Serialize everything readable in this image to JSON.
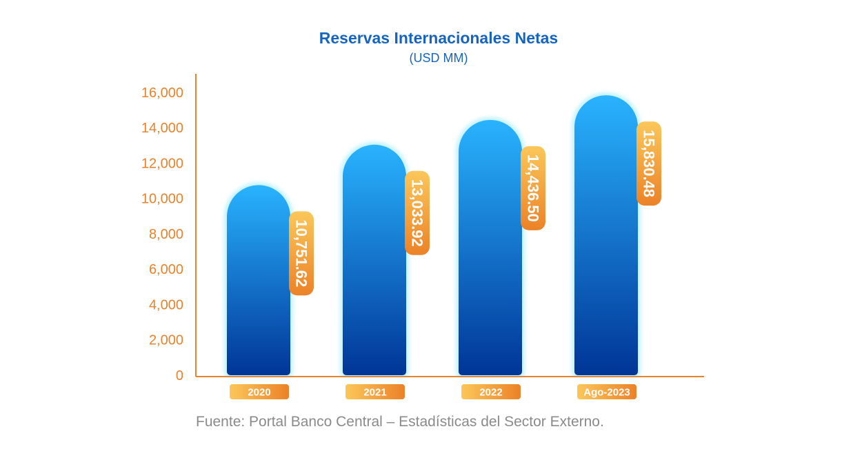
{
  "chart_data": {
    "type": "bar",
    "title": "Reservas Internacionales Netas",
    "subtitle": "(USD MM)",
    "categories": [
      "2020",
      "2021",
      "2022",
      "Ago-2023"
    ],
    "values": [
      10751.62,
      13033.92,
      14436.5,
      15830.48
    ],
    "value_labels": [
      "10,751.62",
      "13,033.92",
      "14,436.50",
      "15,830.48"
    ],
    "yticks": [
      0,
      2000,
      4000,
      6000,
      8000,
      10000,
      12000,
      14000,
      16000
    ],
    "ytick_labels": [
      "0",
      "2,000",
      "4,000",
      "6,000",
      "8,000",
      "10,000",
      "12,000",
      "14,000",
      "16,000"
    ],
    "ylim": [
      0,
      17000
    ],
    "xlabel": "",
    "ylabel": "",
    "grid": false,
    "legend": "none",
    "colors": {
      "axis": "#e9822a",
      "bar_top": "#29b3ff",
      "bar_bottom": "#003596",
      "label_light": "#fbc75a",
      "label_dark": "#ec8228",
      "title": "#1565c0"
    }
  },
  "source": "Fuente: Portal Banco Central – Estadísticas del Sector Externo."
}
